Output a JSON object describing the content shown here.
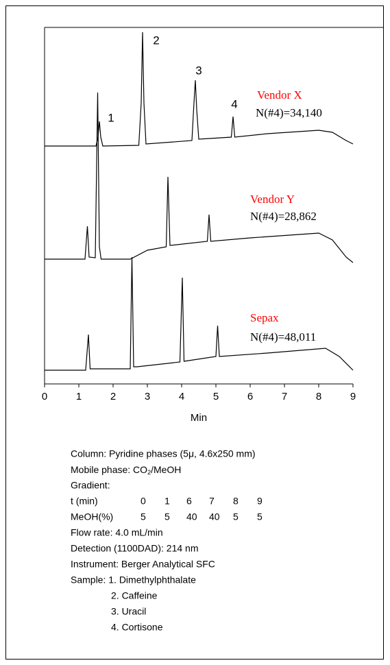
{
  "chart_data": {
    "type": "line",
    "xlabel": "Min",
    "xlim": [
      0,
      9
    ],
    "xticks": [
      0,
      1,
      2,
      3,
      4,
      5,
      6,
      7,
      8,
      9
    ],
    "ylim": [
      0,
      520
    ],
    "series": [
      {
        "name": "Vendor X",
        "label": "N(#4)=34,140",
        "color": "#000000",
        "x": [
          0,
          1.5,
          1.56,
          1.6,
          1.64,
          1.7,
          2.75,
          2.82,
          2.86,
          2.9,
          2.96,
          4.3,
          4.36,
          4.4,
          4.44,
          4.5,
          5.45,
          5.5,
          5.55,
          6.5,
          8,
          8.4,
          8.8,
          9
        ],
        "values": [
          347,
          347,
          360,
          383,
          360,
          347,
          348,
          410,
          513,
          410,
          350,
          355,
          410,
          443,
          400,
          357,
          360,
          390,
          360,
          365,
          370,
          367,
          355,
          350
        ]
      },
      {
        "name": "Vendor Y",
        "label": "N(#4)=28,862",
        "color": "#000000",
        "x": [
          0,
          1.18,
          1.25,
          1.3,
          1.48,
          1.55,
          1.6,
          1.65,
          2.5,
          3,
          3.55,
          3.6,
          3.66,
          4.75,
          4.8,
          4.85,
          6,
          8,
          8.4,
          8.8,
          9
        ],
        "values": [
          182,
          182,
          230,
          185,
          184,
          425,
          200,
          182,
          182,
          195,
          200,
          302,
          202,
          208,
          247,
          208,
          213,
          220,
          210,
          185,
          177
        ]
      },
      {
        "name": "Sepax",
        "label": "N(#4)=48,011",
        "color": "#000000",
        "x": [
          0,
          1.2,
          1.28,
          1.33,
          2.5,
          2.55,
          2.6,
          2.7,
          3.95,
          4.02,
          4.07,
          5,
          5.05,
          5.1,
          6.5,
          8.2,
          8.6,
          9
        ],
        "values": [
          20,
          20,
          72,
          22,
          22,
          185,
          25,
          25,
          32,
          155,
          33,
          40,
          85,
          40,
          45,
          52,
          40,
          20
        ]
      }
    ],
    "peak_labels": [
      "1",
      "2",
      "3",
      "4"
    ],
    "series_name_color": "#ff0000"
  },
  "notes": {
    "column": "Column: Pyridine phases (5μ, 4.6x250 mm)",
    "mobile_phase": [
      "Mobile phase: CO",
      "2",
      "/MeOH"
    ],
    "gradient": "Gradient:",
    "gradient_table": [
      [
        "t (min)",
        "0",
        "1",
        "6",
        "7",
        "8",
        "9"
      ],
      [
        "MeOH(%)",
        "5",
        "5",
        "40",
        "40",
        "5",
        "5"
      ]
    ],
    "flow_rate": "Flow rate: 4.0 mL/min",
    "detection": "Detection (1100DAD): 214 nm",
    "instrument": "Instrument: Berger Analytical SFC",
    "sample": [
      "Sample: 1. Dimethylphthalate",
      "2. Caffeine",
      "3. Uracil",
      "4. Cortisone"
    ]
  }
}
